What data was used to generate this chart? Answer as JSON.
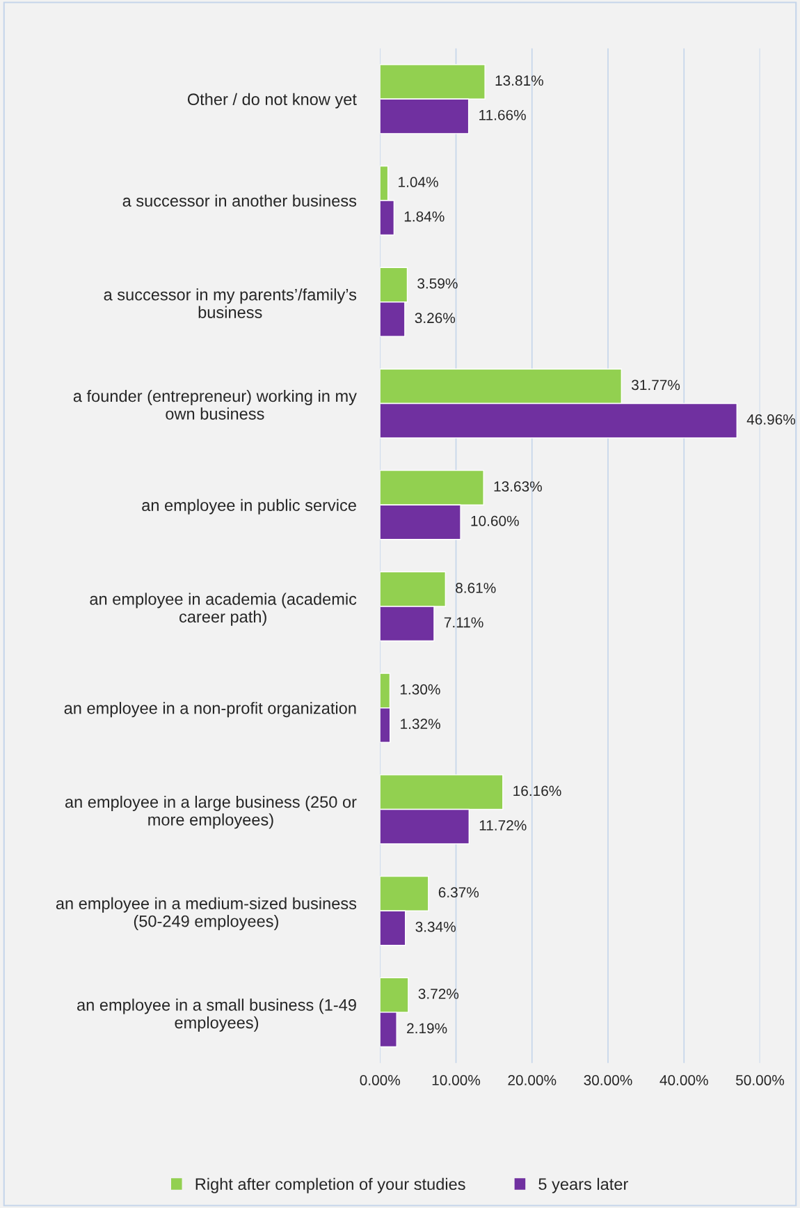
{
  "chart_data": {
    "type": "bar",
    "orientation": "horizontal",
    "categories": [
      "Other / do not know yet",
      "a successor in another business",
      "a successor in my parents’/family’s\nbusiness",
      "a founder (entrepreneur) working in my\nown business",
      "an employee in public service",
      "an employee in academia (academic\ncareer path)",
      "an employee in a non-profit organization",
      "an employee in a large business (250 or\nmore employees)",
      "an employee in a medium-sized business\n(50-249 employees)",
      "an employee in a small business (1-49\nemployees)"
    ],
    "series": [
      {
        "name": "Right after completion of your studies",
        "color": "#92d050",
        "values": [
          13.81,
          1.04,
          3.59,
          31.77,
          13.63,
          8.61,
          1.3,
          16.16,
          6.37,
          3.72
        ],
        "value_labels": [
          "13.81%",
          "1.04%",
          "3.59%",
          "31.77%",
          "13.63%",
          "8.61%",
          "1.30%",
          "16.16%",
          "6.37%",
          "3.72%"
        ]
      },
      {
        "name": "5 years later",
        "color": "#7030a0",
        "values": [
          11.66,
          1.84,
          3.26,
          46.96,
          10.6,
          7.11,
          1.32,
          11.72,
          3.34,
          2.19
        ],
        "value_labels": [
          "11.66%",
          "1.84%",
          "3.26%",
          "46.96%",
          "10.60%",
          "7.11%",
          "1.32%",
          "11.72%",
          "3.34%",
          "2.19%"
        ]
      }
    ],
    "xlim": [
      0,
      50
    ],
    "xticks": [
      {
        "value": 0,
        "label": "0.00%"
      },
      {
        "value": 10,
        "label": "10.00%"
      },
      {
        "value": 20,
        "label": "20.00%"
      },
      {
        "value": 30,
        "label": "30.00%"
      },
      {
        "value": 40,
        "label": "40.00%"
      },
      {
        "value": 50,
        "label": "50.00%"
      }
    ],
    "grid": "x",
    "legend": "bottom"
  }
}
